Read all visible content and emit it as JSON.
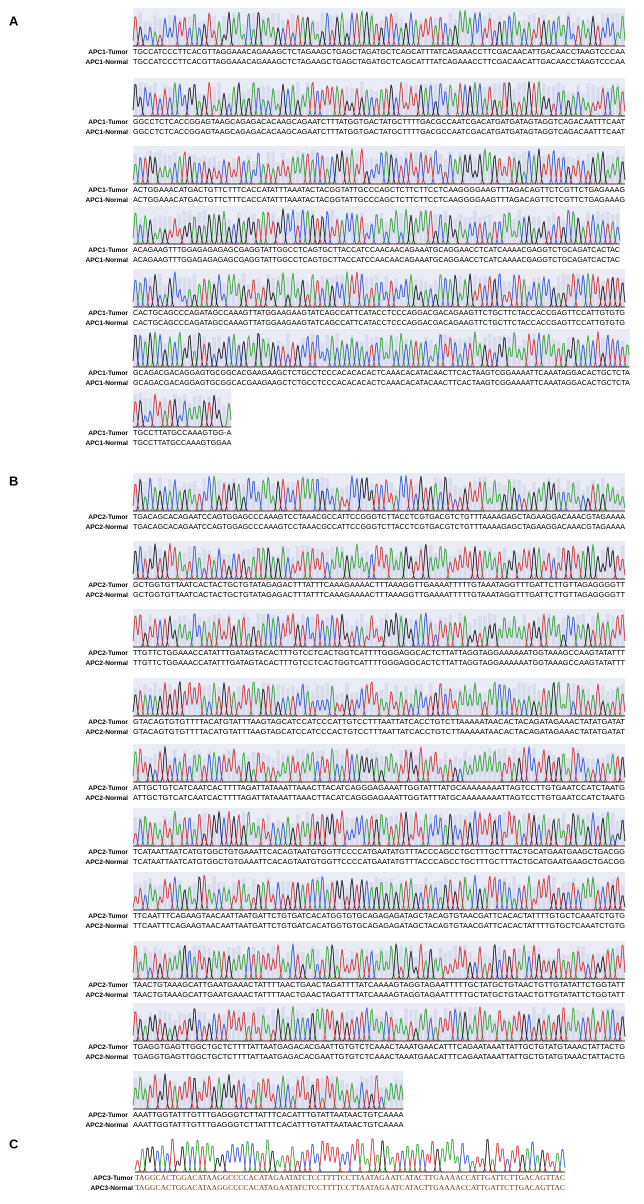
{
  "panels": [
    {
      "label": "A",
      "rows": [
        {
          "tumor_label": "APC1-Tumor",
          "normal_label": "APC1-Normal",
          "tumor_seq": "TGCCATCCCTTCACGTTAGGAAACAGAAAGCTCTAGAAGCTGAGCTAGATGCTCAGCATTTATCAGAAACCTTCGACAACATTGACAACCTAAGTCCCAA",
          "normal_seq": "TGCCATCCCTTCACGTTAGGAAACAGAAAGCTCTAGAAGCTGAGCTAGATGCTCAGCATTTATCAGAAACCTTCGACAACATTGACAACCTAAGTCCCAA"
        },
        {
          "tumor_label": "APC1-Tumor",
          "normal_label": "APC1-Normal",
          "tumor_seq": "GGCCTCTCACCGGAGTAAGCAGAGACACAAGCAGAATCTTTATGGTGACTATGCTTTTGACGCCAATCGACATGATGATAGTAGGTCAGACAATTTCAAT",
          "normal_seq": "GGCCTCTCACCGGAGTAAGCAGAGACACAAGCAGAATCTTTATGGTGACTATGCTTTTGACGCCAATCGACATGATGATAGTAGGTCAGACAATTTCAAT"
        },
        {
          "tumor_label": "APC1-Tumor",
          "normal_label": "APC1-Normal",
          "tumor_seq": "ACTGGAAACATGACTGTTCTTTCACCATATTTAAATACTACGGTATTGCCCAGCTCTTCTTCCTCAAGGGGAAGTTTAGACAGTTCTCGTTCTGAGAAAG",
          "normal_seq": "ACTGGAAACATGACTGTTCTTTCACCATATTTAAATACTACGGTATTGCCCAGCTCTTCTTCCTCAAGGGGAAGTTTAGACAGTTCTCGTTCTGAGAAAG"
        },
        {
          "tumor_label": "APC1-Tumor",
          "normal_label": "APC1-Normal",
          "tumor_seq": "ACAGAAGTTTGGAGAGAGAGCGAGGTATTGGCCTCAGTGCTTACCATCCAACAACAGAAATGCAGGAACCTCATCAAAACGAGGTCTGCAGATCACTAC",
          "normal_seq": "ACAGAAGTTTGGAGAGAGAGCGAGGTATTGGCCTCAGTGCTTACCATCCAACAACAGAAATGCAGGAACCTCATCAAAACGAGGTCTGCAGATCACTAC"
        },
        {
          "tumor_label": "APC1-Tumor",
          "normal_label": "APC1-Normal",
          "tumor_seq": "CACTGCAGCCCAGATAGCCAAAGTTATGGAAGAAGTATCAGCCATTCATACCTCCCAGGACGACAGAAGTTCTGCTTCTACCACCGAGTTCCATTGTGTG",
          "normal_seq": "CACTGCAGCCCAGATAGCCAAAGTTATGGAAGAAGTATCAGCCATTCATACCTCCCAGGACGACAGAAGTTCTGCTTCTACCACCGAGTTCCATTGTGTG"
        },
        {
          "tumor_label": "APC1-Tumor",
          "normal_label": "APC1-Normal",
          "tumor_seq": "GCAGACGACAGGAGTGCGGCACGAAGAAGCTCTGCCTCCCACACACACTCAAACACATACAACTTCACTAAGTCGGAAAATTCAAATAGGACACTGCTCTA",
          "normal_seq": "GCAGACGACAGGAGTGCGGCACGAAGAAGCTCTGCCTCCCACACACACTCAAACACATACAACTTCACTAAGTCGGAAAATTCAAATAGGACACTGCTCTA"
        },
        {
          "tumor_label": "APC1-Tumor",
          "normal_label": "APC1-Normal",
          "tumor_seq": "TGCCTTATGCCAAAGTGG-A",
          "normal_seq": "TGCCTTATGCCAAAGTGGAA"
        }
      ]
    },
    {
      "label": "B",
      "rows": [
        {
          "tumor_label": "APC2-Tumor",
          "normal_label": "APC2-Normal",
          "tumor_seq": "TGACAGCACAGAATCCAGTGGAGCCCAAAGTCCTAAACGCCATTCCGGGTCTTACCTCGTGACGTCTGTTTAAAAGAGCTAGAAGGACAAACGTAGAAAA",
          "normal_seq": "TGACAGCACAGAATCCAGTGGAGCCCAAAGTCCTAAACGCCATTCCGGGTCTTACCTCGTGACGTCTGTTTAAAAGAGCTAGAAGGACAAACGTAGAAAA"
        },
        {
          "tumor_label": "APC2-Tumor",
          "normal_label": "APC2-Normal",
          "tumor_seq": "GCTGGTGTTAATCACTACTGCTGTATAGAGACTTTATTTCAAAGAAAACTTTAAAGGTTGAAAATTTTTGTAAATAGGTTTGATTCTTGTTAGAGGGGTT",
          "normal_seq": "GCTGGTGTTAATCACTACTGCTGTATAGAGACTTTATTTCAAAGAAAACTTTAAAGGTTGAAAATTTTTGTAAATAGGTTTGATTCTTGTTAGAGGGGTT"
        },
        {
          "tumor_label": "APC2-Tumor",
          "normal_label": "APC2-Normal",
          "tumor_seq": "TTGTTCTGGAAACCATATTTGATAGTACACTTTGTCCTCACTGGTCATTTTGGGAGGCACTCTTATTAGGTAGGAAAAAATGGTAAAGCCAAGTATATTT",
          "normal_seq": "TTGTTCTGGAAACCATATTTGATAGTACACTTTGTCCTCACTGGTCATTTTGGGAGGCACTCTTATTAGGTAGGAAAAAATGGTAAAGCCAAGTATATTT"
        },
        {
          "tumor_label": "APC2-Tumor",
          "normal_label": "APC2-Normal",
          "tumor_seq": "GTACAGTGTGTTTTACATGTATTTAAGTAGCATCCATCCCATTGTCCTTTAATTATCACCTGTCTTAAAAATAACACTACAGATAGAAACTATATGATAT",
          "normal_seq": "GTACAGTGTGTTTTACATGTATTTAAGTAGCATCCATCCCACTGTCCTTTAATTATCACCTGTCTTAAAAATAACACTACAGATAGAAACTATATGATAT"
        },
        {
          "tumor_label": "APC2-Tumor",
          "normal_label": "APC2-Normal",
          "tumor_seq": "ATTGCTGTCATCAATCACTTTTAGATTATAAATTAAACTTACATCAGGGAGAAATTGGTATTTATGCAAAAAAAATTAGTCCTTGTGAATCCATCTAATG",
          "normal_seq": "ATTGCTGTCATCAATCACTTTTAGATTATAAATTAAACTTACATCAGGGAGAAATTGGTATTTATGCAAAAAAAATTAGTCCTTGTGAATCCATCTAATG"
        },
        {
          "tumor_label": "APC2-Tumor",
          "normal_label": "APC2-Normal",
          "tumor_seq": "TCATAATTAATCATGTGGCTGTGAAATTCACAGTAATGTGGTTCCCCATGAATATGTTTACCCAGCCTGCTTTGCTTTACTGCATGAATGAAGCTGACGG",
          "normal_seq": "TCATAATTAATCATGTGGCTGTGAAATTCACAGTAATGTGGTTCCCCATGAATATGTTTACCCAGCCTGCTTTGCTTTACTGCATGAATGAAGCTGACGG"
        },
        {
          "tumor_label": "APC2-Tumor",
          "normal_label": "APC2-Normal",
          "tumor_seq": "TTCAATTTCAGAAGTAACAATTAATGATTCTGTGATCACATGGTGTGCAGAGAGATAGCTACAGTGTAACGATTCACACTATTTTGTGCTCAAATCTGTG",
          "normal_seq": "TTCAATTTCAGAAGTAACAATTAATGATTCTGTGATCACATGGTGTGCAGAGAGATAGCTACAGTGTAACGATTCACACTATTTTGTGCTCAAATCTGTG"
        },
        {
          "tumor_label": "APC2-Tumor",
          "normal_label": "APC2-Normal",
          "tumor_seq": "TAACTGTAAAGCATTGAATGAAACTATTTTAACTGAACTAGATTTTATCAAAAGTAGGTAGAATTTTTGCTATGCTGTAACTGTTGTATATTCTGGTATT",
          "normal_seq": "TAACTGTAAAGCATTGAATGAAACTATTTTAACTGAACTAGATTTTATCAAAAGTAGGTAGAATTTTTGCTATGCTGTAACTGTTGTATATTCTGGTATT"
        },
        {
          "tumor_label": "APC2-Tumor",
          "normal_label": "APC2-Normal",
          "tumor_seq": "TGAGGTGAGTTGGCTGCTCTTTTATTAATGAGACACGAATTGTGTCTCAAACTAAATGAACATTTCAGAATAAATTATTGCTGTATGTAAACTATTACTG",
          "normal_seq": "TGAGGTGAGTTGGCTGCTCTTTTATTAATGAGACACGAATTGTGTCTCAAACTAAATGAACATTTCAGAATAAATTATTGCTGTATGTAAACTATTACTG"
        },
        {
          "tumor_label": "APC2-Tumor",
          "normal_label": "APC2-Normal",
          "tumor_seq": "AAATTGGTATTTGTTTGAGGGTCTTATTTCACATTTGTATTAATAACTGTCAAAA",
          "normal_seq": "AAATTGGTATTTGTTTGAGGGTCTTATTTCACATTTGTATTAATAACTGTCAAAA"
        }
      ]
    },
    {
      "label": "C",
      "rows": [
        {
          "tumor_label": "APC3-Tumor",
          "normal_label": "APC3-Normal",
          "tumor_seq": "TAGGCACTGGACATAAGGCCCCACATAGAATATCTCCTTTTCCTTAATAGAATCATACTTGAAAACCATTGATTCTTGACAGTTAC",
          "normal_seq": "TAGGCACTGGACATAAGGCCCCACATAGAATATCTCCTTTTCCTTAATAGAATCATACTTGAAAACCATTGATTCTTGACAGTTAC"
        }
      ]
    }
  ]
}
